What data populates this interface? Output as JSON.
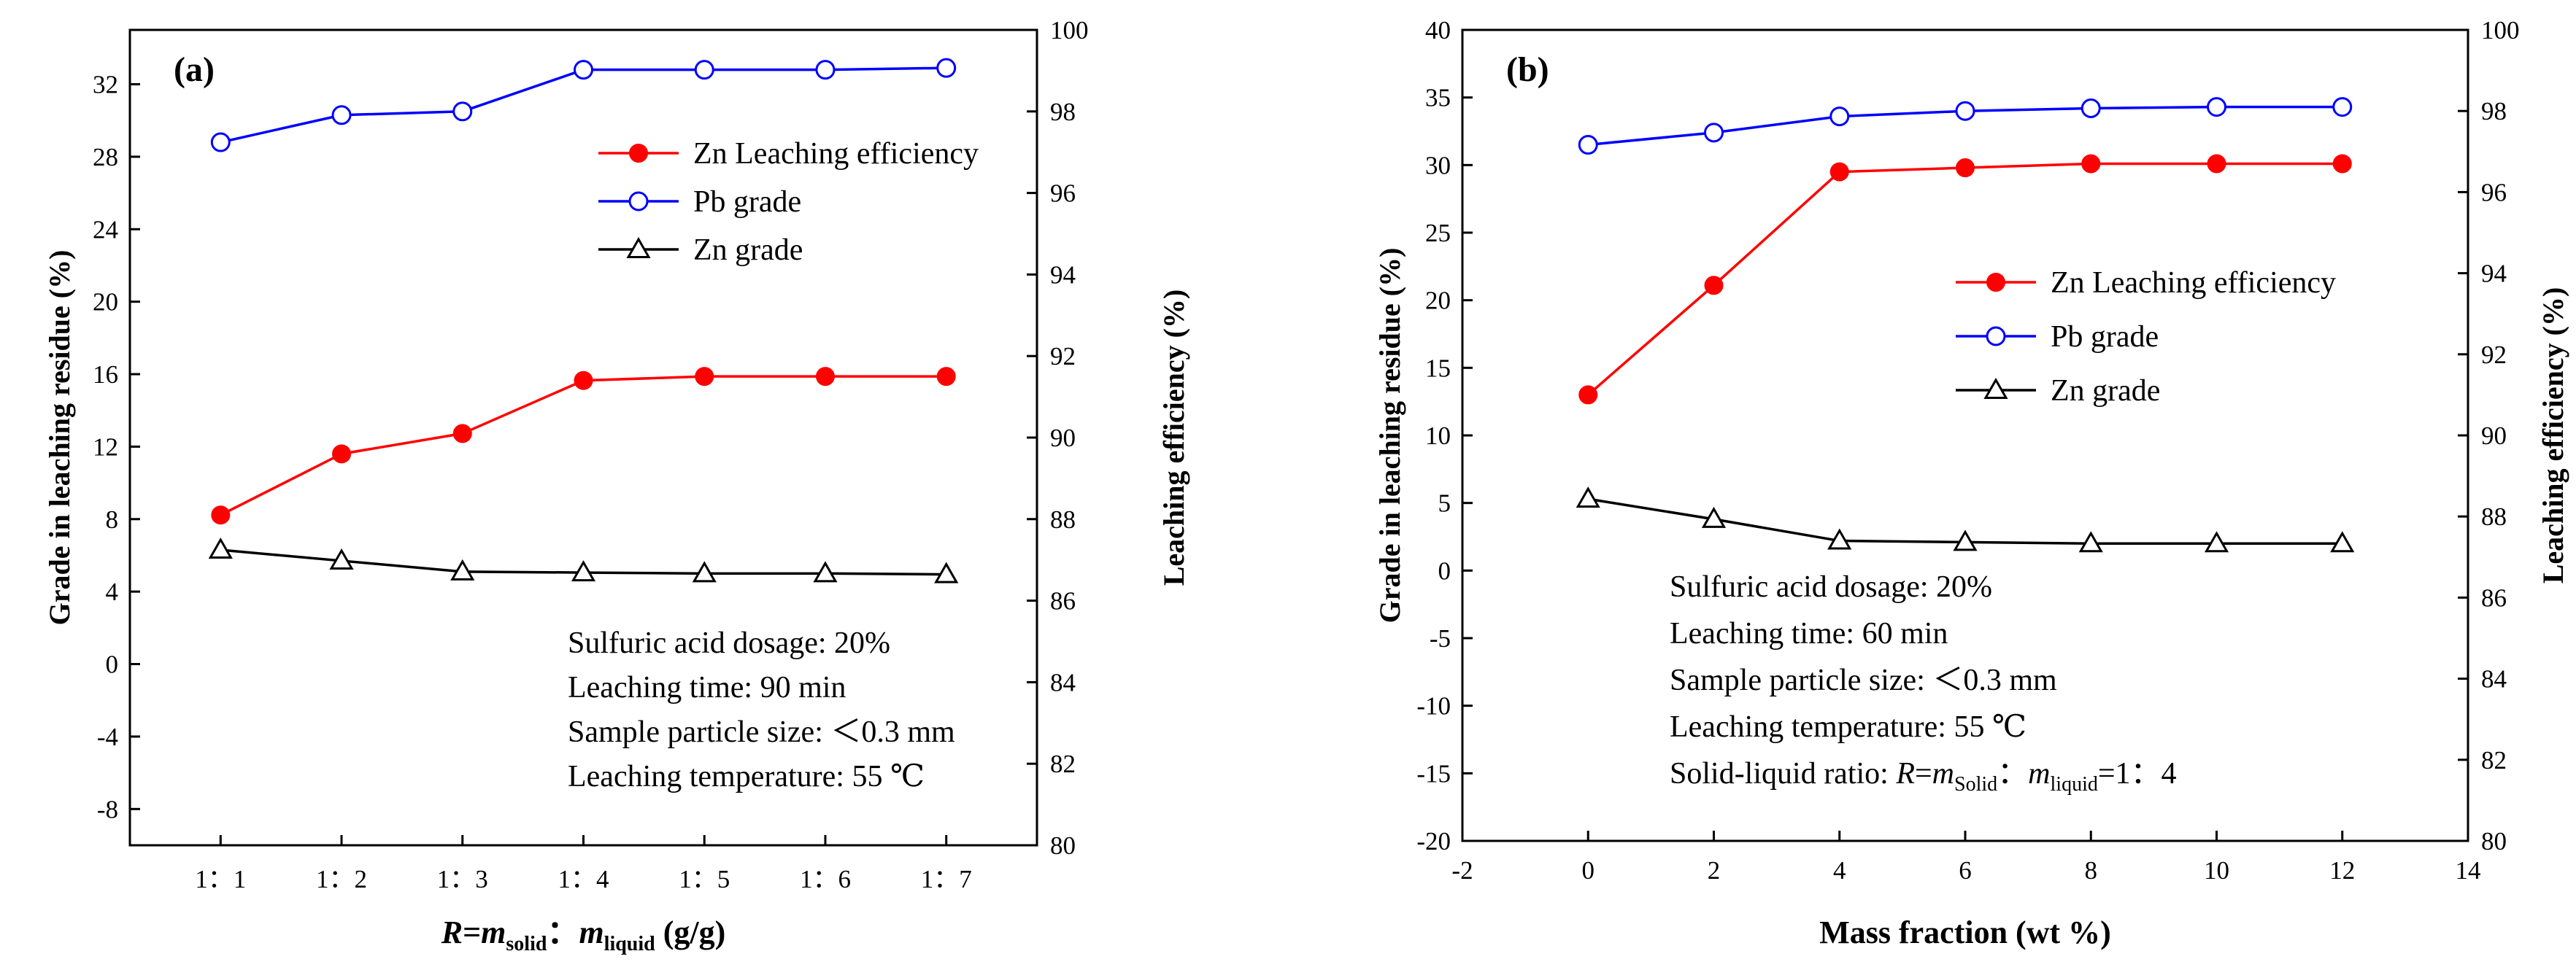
{
  "chart_data": [
    {
      "type": "line",
      "panel_label": "(a)",
      "categories": [
        "1：1",
        "1：2",
        "1：3",
        "1：4",
        "1：5",
        "1：6",
        "1：7"
      ],
      "xlabel": {
        "prefix": "R",
        "eq": "=",
        "m1": "m",
        "sub1": "solid",
        "sep": "：",
        "m2": "m",
        "sub2": "liquid",
        "unit": " (g/g)"
      },
      "ylabel_left": "Grade in leaching residue (%)",
      "ylabel_right": "Leaching efficiency (%)",
      "ylim_left": [
        -10,
        35
      ],
      "ylim_right": [
        80,
        100
      ],
      "yticks_left": [
        -8,
        -4,
        0,
        4,
        8,
        12,
        16,
        20,
        24,
        28,
        32
      ],
      "yticks_right": [
        80,
        82,
        84,
        86,
        88,
        90,
        92,
        94,
        96,
        98,
        100
      ],
      "series": [
        {
          "name": "Zn Leaching efficiency",
          "axis": "right",
          "marker": "filled-circle",
          "color": "#ff0000",
          "values": [
            88.1,
            89.6,
            90.1,
            91.4,
            91.5,
            91.5,
            91.5
          ]
        },
        {
          "name": "Pb grade",
          "axis": "left",
          "marker": "open-circle",
          "color": "#0000ff",
          "values": [
            28.8,
            30.3,
            30.5,
            32.8,
            32.8,
            32.8,
            32.9
          ]
        },
        {
          "name": "Zn grade",
          "axis": "left",
          "marker": "open-triangle",
          "color": "#000000",
          "values": [
            6.3,
            5.7,
            5.1,
            5.05,
            5.0,
            5.0,
            4.95
          ]
        }
      ],
      "legend": {
        "position": "top-right",
        "entries": [
          "Zn Leaching efficiency",
          "Pb grade",
          "Zn grade"
        ]
      },
      "annotations": [
        {
          "text": "Sulfuric acid dosage: 20%"
        },
        {
          "text": "Leaching time: 90 min"
        },
        {
          "text": "Sample particle size: ＜0.3 mm"
        },
        {
          "text": "Leaching temperature: 55 ℃"
        }
      ]
    },
    {
      "type": "line",
      "panel_label": "(b)",
      "x": [
        0,
        2,
        4,
        6,
        8,
        10,
        12
      ],
      "xlabel": "Mass fraction (wt %)",
      "xlim": [
        -2,
        14
      ],
      "xticks": [
        -2,
        0,
        2,
        4,
        6,
        8,
        10,
        12,
        14
      ],
      "ylabel_left": "Grade in leaching residue (%)",
      "ylabel_right": "Leaching efficiency (%)",
      "ylim_left": [
        -20,
        40
      ],
      "ylim_right": [
        80,
        100
      ],
      "yticks_left": [
        -20,
        -15,
        -10,
        -5,
        0,
        5,
        10,
        15,
        20,
        25,
        30,
        35,
        40
      ],
      "yticks_right": [
        80,
        82,
        84,
        86,
        88,
        90,
        92,
        94,
        96,
        98,
        100
      ],
      "series": [
        {
          "name": "Zn Leaching efficiency",
          "axis": "left",
          "marker": "filled-circle",
          "color": "#ff0000",
          "values": [
            13.0,
            21.1,
            29.5,
            29.8,
            30.1,
            30.1,
            30.1
          ]
        },
        {
          "name": "Pb grade",
          "axis": "left",
          "marker": "open-circle",
          "color": "#0000ff",
          "values": [
            31.5,
            32.4,
            33.6,
            34.0,
            34.2,
            34.3,
            34.3
          ]
        },
        {
          "name": "Zn grade",
          "axis": "left",
          "marker": "open-triangle",
          "color": "#000000",
          "values": [
            5.3,
            3.8,
            2.2,
            2.1,
            2.0,
            2.0,
            2.0
          ]
        }
      ],
      "legend": {
        "position": "center-right",
        "entries": [
          "Zn Leaching efficiency",
          "Pb grade",
          "Zn grade"
        ]
      },
      "annotations": [
        {
          "text": "Sulfuric acid dosage: 20%"
        },
        {
          "text": "Leaching time: 60 min"
        },
        {
          "text": "Sample particle size: ＜0.3 mm"
        },
        {
          "text": "Leaching temperature: 55 ℃"
        },
        {
          "text": "Solid-liquid ratio: R=mSolid：mliquid=1：4",
          "parts": {
            "lead": "Solid-liquid ratio: ",
            "R": "R",
            "eq": "=",
            "m1": "m",
            "sub1": "Solid",
            "sep": "：",
            "m2": "m",
            "sub2": "liquid",
            "tail": "=1：4"
          }
        }
      ]
    }
  ]
}
